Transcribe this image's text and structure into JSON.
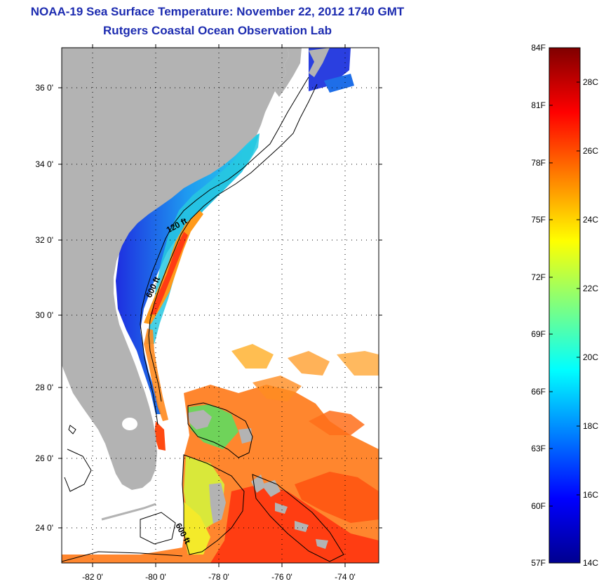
{
  "title": {
    "line1": "NOAA-19 Sea Surface Temperature:  November 22, 2012 1740 GMT",
    "line2": "Rutgers Coastal Ocean Observation Lab"
  },
  "map": {
    "lat_labels": [
      "36 0'",
      "34 0'",
      "32 0'",
      "30 0'",
      "28 0'",
      "26 0'",
      "24 0'"
    ],
    "lon_labels": [
      "-82 0'",
      "-80 0'",
      "-78 0'",
      "-76 0'",
      "-74 0'"
    ],
    "isobath_labels": [
      "120 ft",
      "600 ft",
      "600 ft"
    ],
    "colors": {
      "land": "#b3b3b3",
      "ocean_nodata": "#ffffff",
      "contour": "#000000"
    }
  },
  "colorbar": {
    "fahrenheit_labels": [
      "84F",
      "81F",
      "78F",
      "75F",
      "72F",
      "69F",
      "66F",
      "63F",
      "60F",
      "57F"
    ],
    "celsius_labels": [
      "28C",
      "26C",
      "24C",
      "22C",
      "20C",
      "18C",
      "16C",
      "14C"
    ],
    "colormap": "jet"
  }
}
